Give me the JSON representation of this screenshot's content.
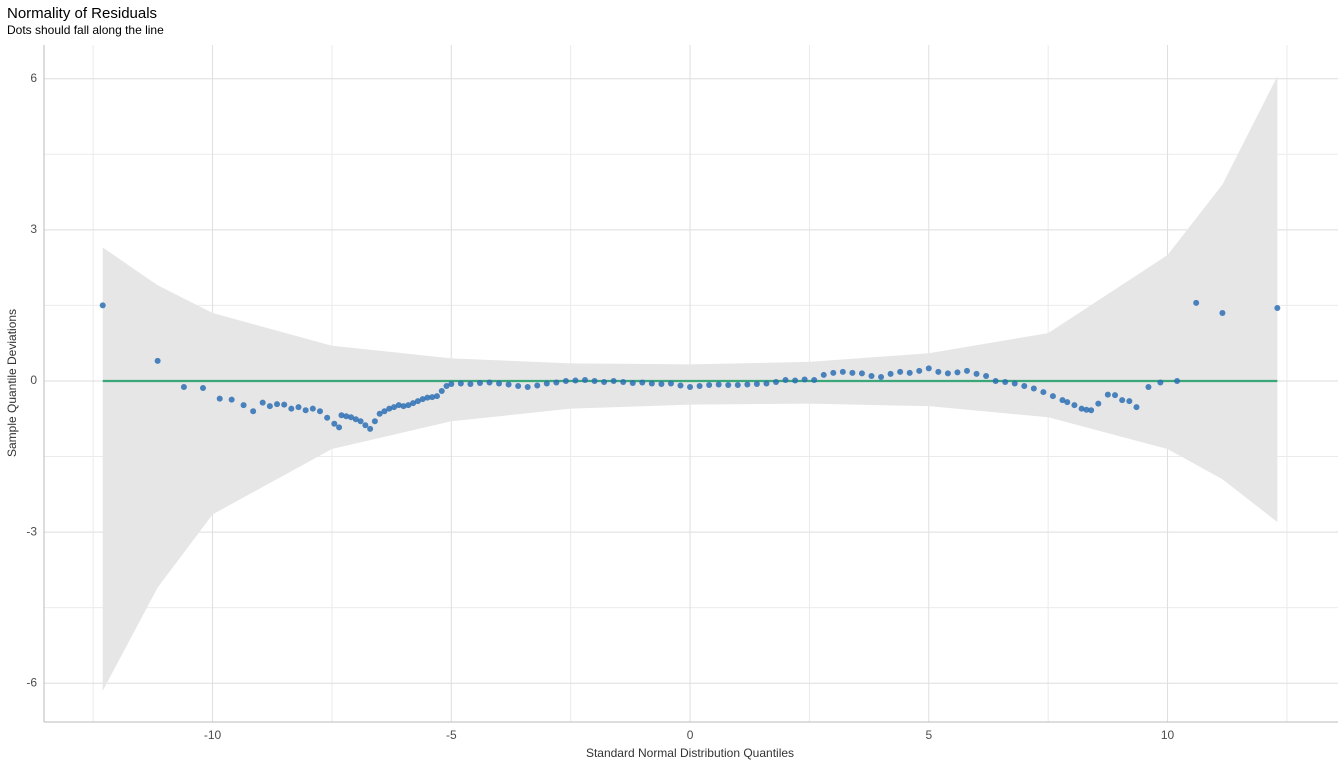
{
  "chart_data": {
    "type": "scatter",
    "title": "Normality of Residuals",
    "subtitle": "Dots should fall along the line",
    "xlabel": "Standard Normal Distribution Quantiles",
    "ylabel": "Sample Quantile Deviations",
    "x": [
      -12.3,
      -11.15,
      -10.6,
      -10.2,
      -9.85,
      -9.6,
      -9.35,
      -9.15,
      -8.95,
      -8.8,
      -8.65,
      -8.5,
      -8.35,
      -8.2,
      -8.05,
      -7.9,
      -7.75,
      -7.6,
      -7.45,
      -7.35,
      -7.3,
      -7.2,
      -7.1,
      -7.0,
      -6.9,
      -6.8,
      -6.7,
      -6.6,
      -6.5,
      -6.4,
      -6.3,
      -6.2,
      -6.1,
      -6.0,
      -5.9,
      -5.8,
      -5.7,
      -5.6,
      -5.5,
      -5.4,
      -5.3,
      -5.2,
      -5.1,
      -5.0,
      -4.8,
      -4.6,
      -4.4,
      -4.2,
      -4.0,
      -3.8,
      -3.6,
      -3.4,
      -3.2,
      -3.0,
      -2.8,
      -2.6,
      -2.4,
      -2.2,
      -2.0,
      -1.8,
      -1.6,
      -1.4,
      -1.2,
      -1.0,
      -0.8,
      -0.6,
      -0.4,
      -0.2,
      0.0,
      0.2,
      0.4,
      0.6,
      0.8,
      1.0,
      1.2,
      1.4,
      1.6,
      1.8,
      2.0,
      2.2,
      2.4,
      2.6,
      2.8,
      3.0,
      3.2,
      3.4,
      3.6,
      3.8,
      4.0,
      4.2,
      4.4,
      4.6,
      4.8,
      5.0,
      5.2,
      5.4,
      5.6,
      5.8,
      6.0,
      6.2,
      6.4,
      6.6,
      6.8,
      7.0,
      7.2,
      7.4,
      7.6,
      7.8,
      7.9,
      8.05,
      8.2,
      8.3,
      8.4,
      8.55,
      8.75,
      8.9,
      9.05,
      9.2,
      9.35,
      9.6,
      9.85,
      10.2,
      10.6,
      11.15,
      12.3
    ],
    "values": [
      1.5,
      0.4,
      -0.12,
      -0.14,
      -0.35,
      -0.37,
      -0.48,
      -0.6,
      -0.43,
      -0.5,
      -0.46,
      -0.47,
      -0.55,
      -0.52,
      -0.58,
      -0.55,
      -0.6,
      -0.73,
      -0.85,
      -0.92,
      -0.68,
      -0.7,
      -0.72,
      -0.76,
      -0.8,
      -0.88,
      -0.95,
      -0.8,
      -0.65,
      -0.6,
      -0.55,
      -0.52,
      -0.48,
      -0.5,
      -0.48,
      -0.44,
      -0.4,
      -0.36,
      -0.33,
      -0.32,
      -0.3,
      -0.2,
      -0.1,
      -0.06,
      -0.05,
      -0.06,
      -0.04,
      -0.03,
      -0.05,
      -0.07,
      -0.1,
      -0.12,
      -0.09,
      -0.05,
      -0.03,
      0.0,
      0.01,
      0.02,
      0.0,
      -0.02,
      0.0,
      -0.02,
      -0.04,
      -0.03,
      -0.05,
      -0.06,
      -0.05,
      -0.09,
      -0.12,
      -0.1,
      -0.08,
      -0.07,
      -0.08,
      -0.08,
      -0.07,
      -0.06,
      -0.05,
      -0.02,
      0.02,
      0.01,
      0.03,
      0.02,
      0.12,
      0.16,
      0.18,
      0.16,
      0.15,
      0.1,
      0.08,
      0.14,
      0.18,
      0.16,
      0.2,
      0.25,
      0.18,
      0.15,
      0.17,
      0.2,
      0.14,
      0.1,
      0.0,
      -0.02,
      -0.05,
      -0.1,
      -0.15,
      -0.22,
      -0.3,
      -0.38,
      -0.42,
      -0.48,
      -0.55,
      -0.57,
      -0.58,
      -0.45,
      -0.27,
      -0.28,
      -0.38,
      -0.4,
      -0.52,
      -0.12,
      -0.03,
      0.0,
      1.55,
      1.35,
      1.45
    ],
    "color": "#2c6fb3",
    "band": {
      "x": [
        -12.3,
        -11.15,
        -10,
        -7.5,
        -5,
        -2.5,
        0,
        2.5,
        5,
        7.5,
        10,
        11.15,
        12.3
      ],
      "upper": [
        2.65,
        1.9,
        1.35,
        0.7,
        0.45,
        0.35,
        0.33,
        0.38,
        0.55,
        0.95,
        2.5,
        3.9,
        6.05
      ],
      "lower": [
        -6.15,
        -4.1,
        -2.65,
        -1.35,
        -0.8,
        -0.55,
        -0.47,
        -0.45,
        -0.5,
        -0.72,
        -1.35,
        -1.95,
        -2.8
      ],
      "color": "#e6e6e6"
    },
    "reference_line": {
      "x": [
        -12.3,
        12.3
      ],
      "y": [
        0,
        0
      ],
      "color": "#3aa67a"
    },
    "xlim": [
      -13.53,
      13.57
    ],
    "ylim": [
      -6.77,
      6.67
    ],
    "xticks": [
      -10,
      -5,
      0,
      5,
      10
    ],
    "yticks": [
      -6,
      -3,
      0,
      3,
      6
    ],
    "xminor": [
      -12.5,
      -7.5,
      -2.5,
      2.5,
      7.5,
      12.5
    ],
    "yminor": [
      -4.5,
      -1.5,
      1.5,
      4.5
    ],
    "grid": true
  }
}
